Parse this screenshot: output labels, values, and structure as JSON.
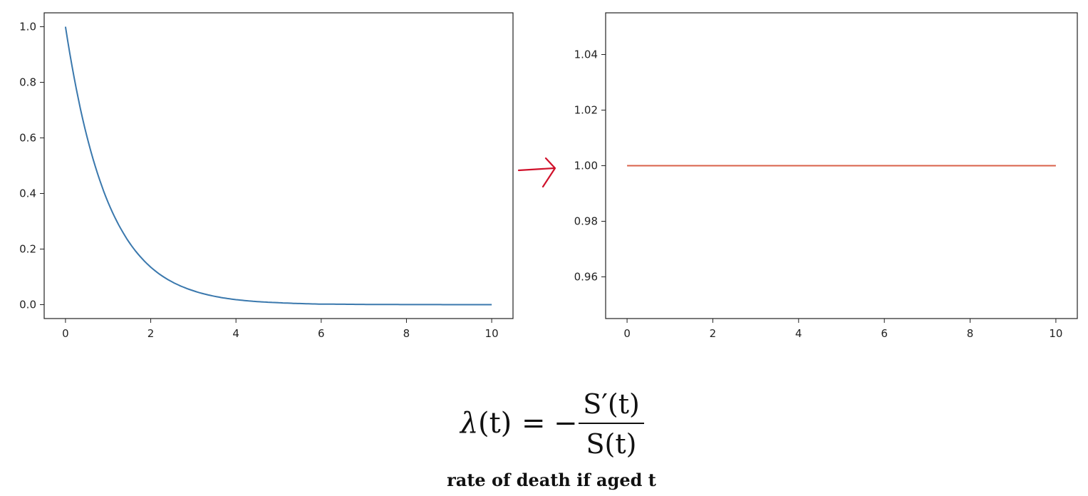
{
  "chart_data": [
    {
      "type": "line",
      "x": [
        0,
        0.5,
        1,
        1.5,
        2,
        2.5,
        3,
        3.5,
        4,
        4.5,
        5,
        5.5,
        6,
        6.5,
        7,
        7.5,
        8,
        8.5,
        9,
        9.5,
        10
      ],
      "series": [
        {
          "values": [
            1.0,
            0.607,
            0.368,
            0.223,
            0.135,
            0.082,
            0.05,
            0.03,
            0.018,
            0.011,
            0.007,
            0.004,
            0.002,
            0.0015,
            0.0009,
            0.0006,
            0.0003,
            0.0002,
            0.0001,
            0.0001,
            0.0
          ],
          "color": "#3a78ad"
        }
      ],
      "xlim": [
        -0.5,
        10.5
      ],
      "ylim": [
        -0.05,
        1.05
      ],
      "xticks": [
        0,
        2,
        4,
        6,
        8,
        10
      ],
      "yticks": [
        0.0,
        0.2,
        0.4,
        0.6,
        0.8,
        1.0
      ],
      "xtick_labels": [
        "0",
        "2",
        "4",
        "6",
        "8",
        "10"
      ],
      "ytick_labels": [
        "0.0",
        "0.2",
        "0.4",
        "0.6",
        "0.8",
        "1.0"
      ],
      "title": "",
      "xlabel": "",
      "ylabel": "",
      "grid": false
    },
    {
      "type": "line",
      "x": [
        0,
        10
      ],
      "series": [
        {
          "values": [
            1.0,
            1.0
          ],
          "color": "#d9604a"
        }
      ],
      "xlim": [
        -0.5,
        10.5
      ],
      "ylim": [
        0.945,
        1.055
      ],
      "xticks": [
        0,
        2,
        4,
        6,
        8,
        10
      ],
      "yticks": [
        0.96,
        0.98,
        1.0,
        1.02,
        1.04
      ],
      "xtick_labels": [
        "0",
        "2",
        "4",
        "6",
        "8",
        "10"
      ],
      "ytick_labels": [
        "0.96",
        "0.98",
        "1.00",
        "1.02",
        "1.04"
      ],
      "title": "",
      "xlabel": "",
      "ylabel": "",
      "grid": false
    }
  ],
  "annotation": {
    "arrow_color": "#d0102a"
  },
  "formula": {
    "lhs_symbol": "λ",
    "lhs_arg": "(t)",
    "equals": "=",
    "minus": "−",
    "numerator": "S′(t)",
    "denominator": "S(t)"
  },
  "caption": "rate of death if aged t"
}
